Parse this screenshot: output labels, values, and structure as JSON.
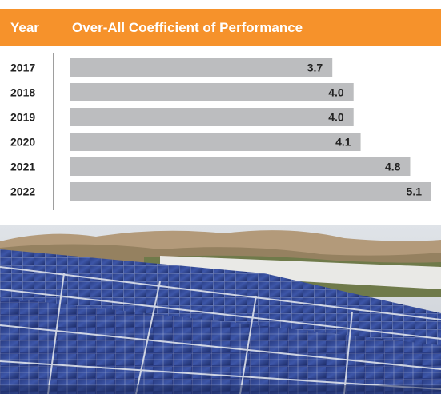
{
  "header": {
    "year_label": "Year",
    "title": "Over-All Coefficient of Performance"
  },
  "colors": {
    "header_bg": "#f6922b",
    "bar": "#bcbdbf",
    "axis": "#7f7f7f",
    "text": "#222222"
  },
  "chart_data": {
    "type": "bar",
    "orientation": "horizontal",
    "categories": [
      "2017",
      "2018",
      "2019",
      "2020",
      "2021",
      "2022"
    ],
    "values": [
      3.7,
      4.0,
      4.0,
      4.1,
      4.8,
      5.1
    ],
    "value_labels": [
      "3.7",
      "4.0",
      "4.0",
      "4.1",
      "4.8",
      "5.1"
    ],
    "xlabel": "",
    "ylabel": "Year",
    "title": "Over-All Coefficient of Performance",
    "grid": false
  },
  "photo": {
    "icon": "solar-panels-image"
  }
}
